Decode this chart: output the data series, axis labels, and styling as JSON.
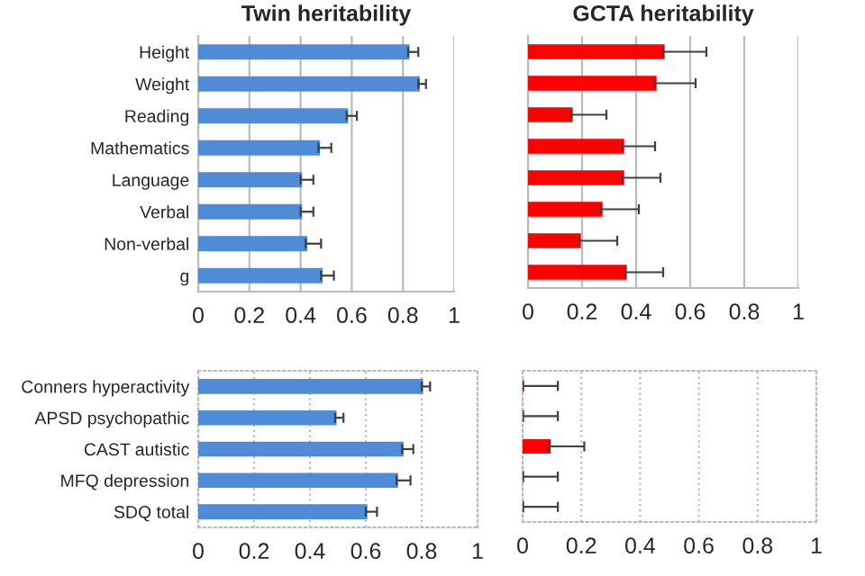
{
  "chart_data": [
    {
      "type": "bar",
      "orientation": "horizontal",
      "title": "Twin heritability",
      "categories": [
        "Height",
        "Weight",
        "Reading",
        "Mathematics",
        "Language",
        "Verbal",
        "Non-verbal",
        "g"
      ],
      "series": [
        {
          "color": "#4f8bd6",
          "values": [
            0.82,
            0.86,
            0.58,
            0.47,
            0.4,
            0.4,
            0.42,
            0.48
          ],
          "errors": [
            [
              0.82,
              0.86
            ],
            [
              0.86,
              0.89
            ],
            [
              0.58,
              0.62
            ],
            [
              0.47,
              0.52
            ],
            [
              0.4,
              0.45
            ],
            [
              0.4,
              0.45
            ],
            [
              0.42,
              0.48
            ],
            [
              0.48,
              0.53
            ]
          ]
        }
      ],
      "xlim": [
        0,
        1
      ],
      "xticks": [
        0,
        0.2,
        0.4,
        0.6,
        0.8,
        1
      ],
      "grid": "x",
      "line_style": "solid"
    },
    {
      "type": "bar",
      "orientation": "horizontal",
      "title": "GCTA heritability",
      "categories": [
        null,
        null,
        null,
        null,
        null,
        null,
        null,
        null
      ],
      "series": [
        {
          "color": "#ff0000",
          "values": [
            0.5,
            0.47,
            0.16,
            0.35,
            0.35,
            0.27,
            0.19,
            0.36
          ],
          "errors": [
            [
              0.5,
              0.66
            ],
            [
              0.47,
              0.62
            ],
            [
              0.16,
              0.29
            ],
            [
              0.35,
              0.47
            ],
            [
              0.35,
              0.49
            ],
            [
              0.27,
              0.41
            ],
            [
              0.19,
              0.33
            ],
            [
              0.36,
              0.5
            ]
          ]
        }
      ],
      "xlim": [
        0,
        1
      ],
      "xticks": [
        0,
        0.2,
        0.4,
        0.6,
        0.8,
        1
      ],
      "grid": "x",
      "line_style": "solid",
      "tick_labels": "x"
    },
    {
      "type": "bar",
      "orientation": "horizontal",
      "categories": [
        "Conners hyperactivity",
        "APSD psychopathic",
        "CAST autistic",
        "MFQ depression",
        "SDQ total"
      ],
      "series": [
        {
          "color": "#4f8bd6",
          "values": [
            0.8,
            0.49,
            0.73,
            0.71,
            0.6
          ],
          "errors": [
            [
              0.8,
              0.83
            ],
            [
              0.49,
              0.52
            ],
            [
              0.73,
              0.77
            ],
            [
              0.71,
              0.76
            ],
            [
              0.6,
              0.64
            ]
          ]
        }
      ],
      "xlim": [
        0,
        1
      ],
      "xticks": [
        0,
        0.2,
        0.4,
        0.6,
        0.8,
        1
      ],
      "grid": "x",
      "line_style": "dotted"
    },
    {
      "type": "bar",
      "orientation": "horizontal",
      "categories": [
        null,
        null,
        null,
        null,
        null
      ],
      "series": [
        {
          "color": "#ff0000",
          "values": [
            0,
            0,
            0.09,
            0,
            0
          ],
          "errors": [
            [
              0,
              0.12
            ],
            [
              0,
              0.12
            ],
            [
              0.09,
              0.21
            ],
            [
              0,
              0.12
            ],
            [
              0,
              0.12
            ]
          ]
        }
      ],
      "xlim": [
        0,
        1
      ],
      "xticks": [
        0,
        0.2,
        0.4,
        0.6,
        0.8,
        1
      ],
      "grid": "x",
      "line_style": "dotted",
      "tick_labels": "x"
    }
  ]
}
